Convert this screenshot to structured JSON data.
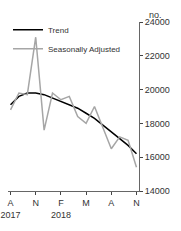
{
  "chart_data": {
    "type": "line",
    "categories": [
      "A",
      null,
      null,
      "N",
      null,
      null,
      "F",
      null,
      null,
      "M",
      null,
      null,
      "A",
      null,
      null,
      "N"
    ],
    "annotations": [
      {
        "text": "2017",
        "x": 0
      },
      {
        "text": "2018",
        "x": 6
      }
    ],
    "ylabel": "no.",
    "series": [
      {
        "name": "Trend",
        "color": "#000000",
        "values": [
          19100,
          19600,
          19800,
          19800,
          19700,
          19500,
          19300,
          19100,
          18900,
          18600,
          18300,
          17900,
          17500,
          17100,
          16700,
          16200
        ]
      },
      {
        "name": "Seasonally Adjusted",
        "color": "#a6a6a6",
        "values": [
          18800,
          19800,
          19700,
          23100,
          17600,
          19800,
          19400,
          19600,
          18400,
          18000,
          19000,
          17800,
          16500,
          17200,
          17000,
          15400
        ]
      }
    ],
    "ylim": [
      14000,
      24000
    ],
    "yticks": [
      14000,
      16000,
      18000,
      20000,
      22000,
      24000
    ],
    "grid": false,
    "legend": "top left"
  }
}
